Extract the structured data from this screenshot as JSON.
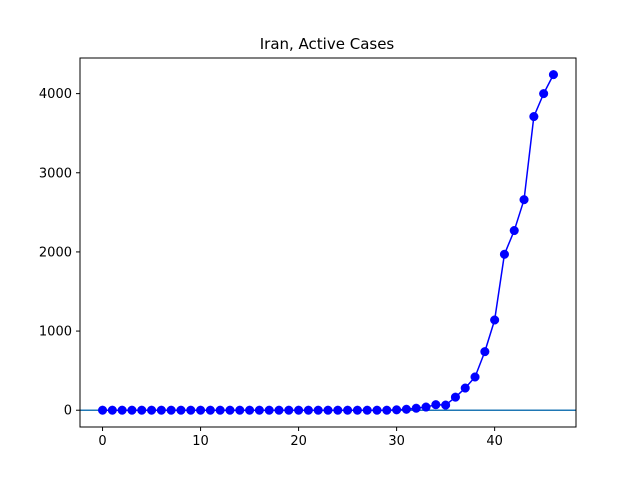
{
  "chart_data": {
    "type": "line",
    "title": "Iran, Active Cases",
    "xlabel": "",
    "ylabel": "",
    "xlim": [
      -2.3,
      48.3
    ],
    "ylim": [
      -212,
      4450
    ],
    "x_ticks": [
      0,
      10,
      20,
      30,
      40
    ],
    "y_ticks": [
      0,
      1000,
      2000,
      3000,
      4000
    ],
    "grid": false,
    "legend": "none",
    "marker": "circle",
    "series": [
      {
        "x": [
          0,
          1,
          2,
          3,
          4,
          5,
          6,
          7,
          8,
          9,
          10,
          11,
          12,
          13,
          14,
          15,
          16,
          17,
          18,
          19,
          20,
          21,
          22,
          23,
          24,
          25,
          26,
          27,
          28,
          29,
          30,
          31,
          32,
          33,
          34,
          35,
          36,
          37,
          38,
          39,
          40,
          41,
          42,
          43,
          44,
          45,
          46
        ],
        "y": [
          0,
          0,
          0,
          0,
          0,
          0,
          0,
          0,
          0,
          0,
          0,
          0,
          0,
          0,
          0,
          0,
          0,
          0,
          0,
          0,
          0,
          0,
          0,
          0,
          0,
          0,
          0,
          0,
          0,
          0,
          5,
          12,
          25,
          40,
          70,
          65,
          165,
          280,
          420,
          740,
          1140,
          1970,
          2270,
          2660,
          3710,
          4000,
          4240
        ],
        "color": "#0000ff"
      }
    ],
    "reference_line": {
      "y": 0,
      "color": "#1f77b4"
    },
    "colors": {
      "series": "#0000ff",
      "reference": "#1f77b4",
      "axes": "#000000",
      "background": "#ffffff"
    }
  }
}
